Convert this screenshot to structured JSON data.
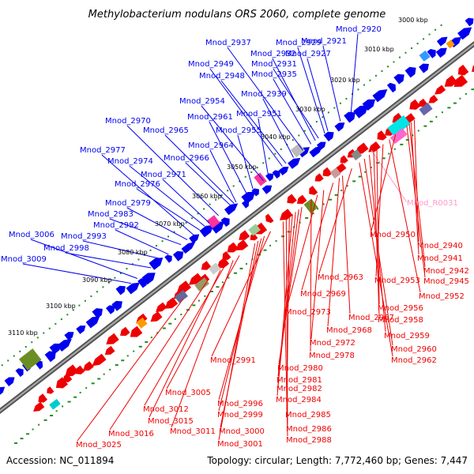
{
  "title": "Methylobacterium nodulans ORS 2060, complete genome",
  "footer": {
    "accession": "Accession: NC_011894",
    "summary": "Topology: circular; Length: 7,772,460 bp; Genes: 7,447"
  },
  "colors": {
    "plus_strand": "#0000ee",
    "minus_strand": "#ee0000",
    "rna": "#ff99cc",
    "backbone": "#777777",
    "ticks": "#228b22"
  },
  "kbp_ticks": [
    "3000 kbp",
    "3010 kbp",
    "3020 kbp",
    "3030 kbp",
    "3040 kbp",
    "3050 kbp",
    "3060 kbp",
    "3070 kbp",
    "3080 kbp",
    "3090 kbp",
    "3100 kbp",
    "3110 kbp"
  ],
  "upper_labels": [
    "Mnod_2920",
    "Mnod_2921",
    "Mnod_2927",
    "Mnod_2929",
    "Mnod_2931",
    "Mnod_2932",
    "Mnod_2935",
    "Mnod_2937",
    "Mnod_2939",
    "Mnod_2948",
    "Mnod_2949",
    "Mnod_2951",
    "Mnod_2954",
    "Mnod_2955",
    "Mnod_2961",
    "Mnod_2964",
    "Mnod_2965",
    "Mnod_2966",
    "Mnod_2970",
    "Mnod_2971",
    "Mnod_2974",
    "Mnod_2976",
    "Mnod_2977",
    "Mnod_2979",
    "Mnod_2983",
    "Mnod_2992",
    "Mnod_2993",
    "Mnod_2998",
    "Mnod_3006",
    "Mnod_3009"
  ],
  "rna_label": "Mnod_R0031",
  "lower_labels": [
    "Mnod_2940",
    "Mnod_2941",
    "Mnod_2942",
    "Mnod_2945",
    "Mnod_2950",
    "Mnod_2952",
    "Mnod_2953",
    "Mnod_2956",
    "Mnod_2958",
    "Mnod_2959",
    "Mnod_2960",
    "Mnod_2962",
    "Mnod_2963",
    "Mnod_2967",
    "Mnod_2968",
    "Mnod_2969",
    "Mnod_2972",
    "Mnod_2973",
    "Mnod_2978",
    "Mnod_2980",
    "Mnod_2981",
    "Mnod_2982",
    "Mnod_2984",
    "Mnod_2985",
    "Mnod_2986",
    "Mnod_2988",
    "Mnod_2991",
    "Mnod_2996",
    "Mnod_2999",
    "Mnod_3000",
    "Mnod_3001",
    "Mnod_3005",
    "Mnod_3011",
    "Mnod_3012",
    "Mnod_3015",
    "Mnod_3016",
    "Mnod_3025"
  ]
}
